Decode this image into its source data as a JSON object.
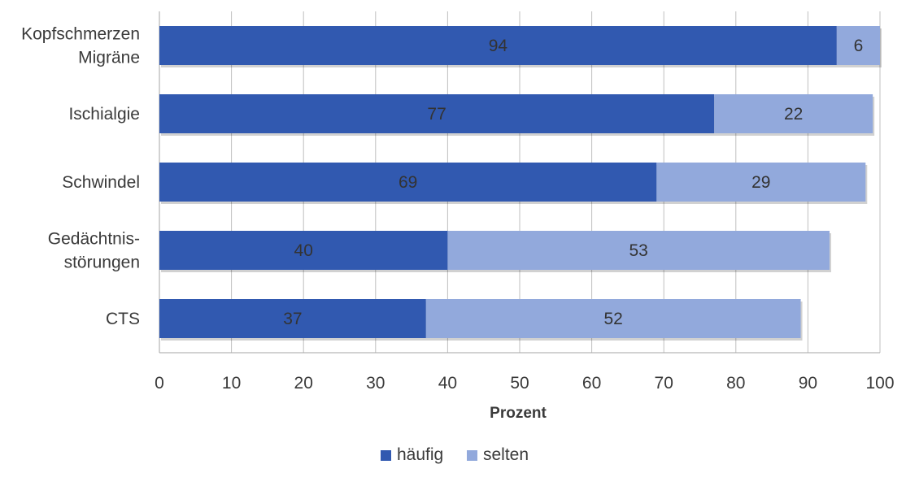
{
  "chart_data": {
    "type": "bar",
    "orientation": "horizontal",
    "stacked": true,
    "categories": [
      [
        "Kopfschmerzen",
        "Migräne"
      ],
      [
        "Ischialgie"
      ],
      [
        "Schwindel"
      ],
      [
        "Gedächtnis-",
        "störungen"
      ],
      [
        "CTS"
      ]
    ],
    "series": [
      {
        "name": "häufig",
        "values": [
          94,
          77,
          69,
          40,
          37
        ],
        "color": "#3159b0"
      },
      {
        "name": "selten",
        "values": [
          6,
          22,
          29,
          53,
          52
        ],
        "color": "#92a9dc"
      }
    ],
    "xlabel": "Prozent",
    "ylabel": "",
    "xlim": [
      0,
      100
    ],
    "xticks": [
      0,
      10,
      20,
      30,
      40,
      50,
      60,
      70,
      80,
      90,
      100
    ],
    "grid": "vertical",
    "legend": "bottom-center"
  }
}
